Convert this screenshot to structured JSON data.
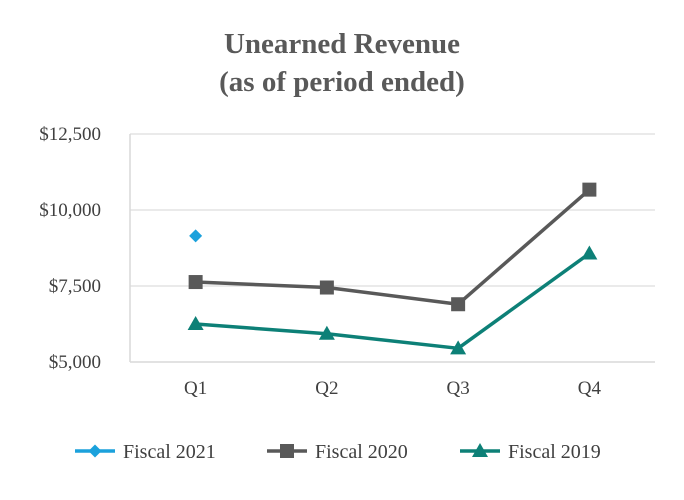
{
  "chart_data": {
    "type": "line",
    "title": [
      "Unearned Revenue",
      "(as of period ended)"
    ],
    "categories": [
      "Q1",
      "Q2",
      "Q3",
      "Q4"
    ],
    "ylim": [
      5000,
      12500
    ],
    "yticks": [
      5000,
      7500,
      10000,
      12500
    ],
    "ytick_labels": [
      "$5,000",
      "$7,500",
      "$10,000",
      "$12,500"
    ],
    "grid": true,
    "legend_position": "bottom",
    "xlabel": "",
    "ylabel": "",
    "series": [
      {
        "name": "Fiscal 2021",
        "marker": "diamond",
        "color": "#1ba1dc",
        "values": [
          9150,
          null,
          null,
          null
        ]
      },
      {
        "name": "Fiscal 2020",
        "marker": "square",
        "color": "#595959",
        "values": [
          7630,
          7450,
          6900,
          10670
        ]
      },
      {
        "name": "Fiscal 2019",
        "marker": "triangle",
        "color": "#0d8077",
        "values": [
          6250,
          5930,
          5450,
          8570
        ]
      }
    ]
  }
}
